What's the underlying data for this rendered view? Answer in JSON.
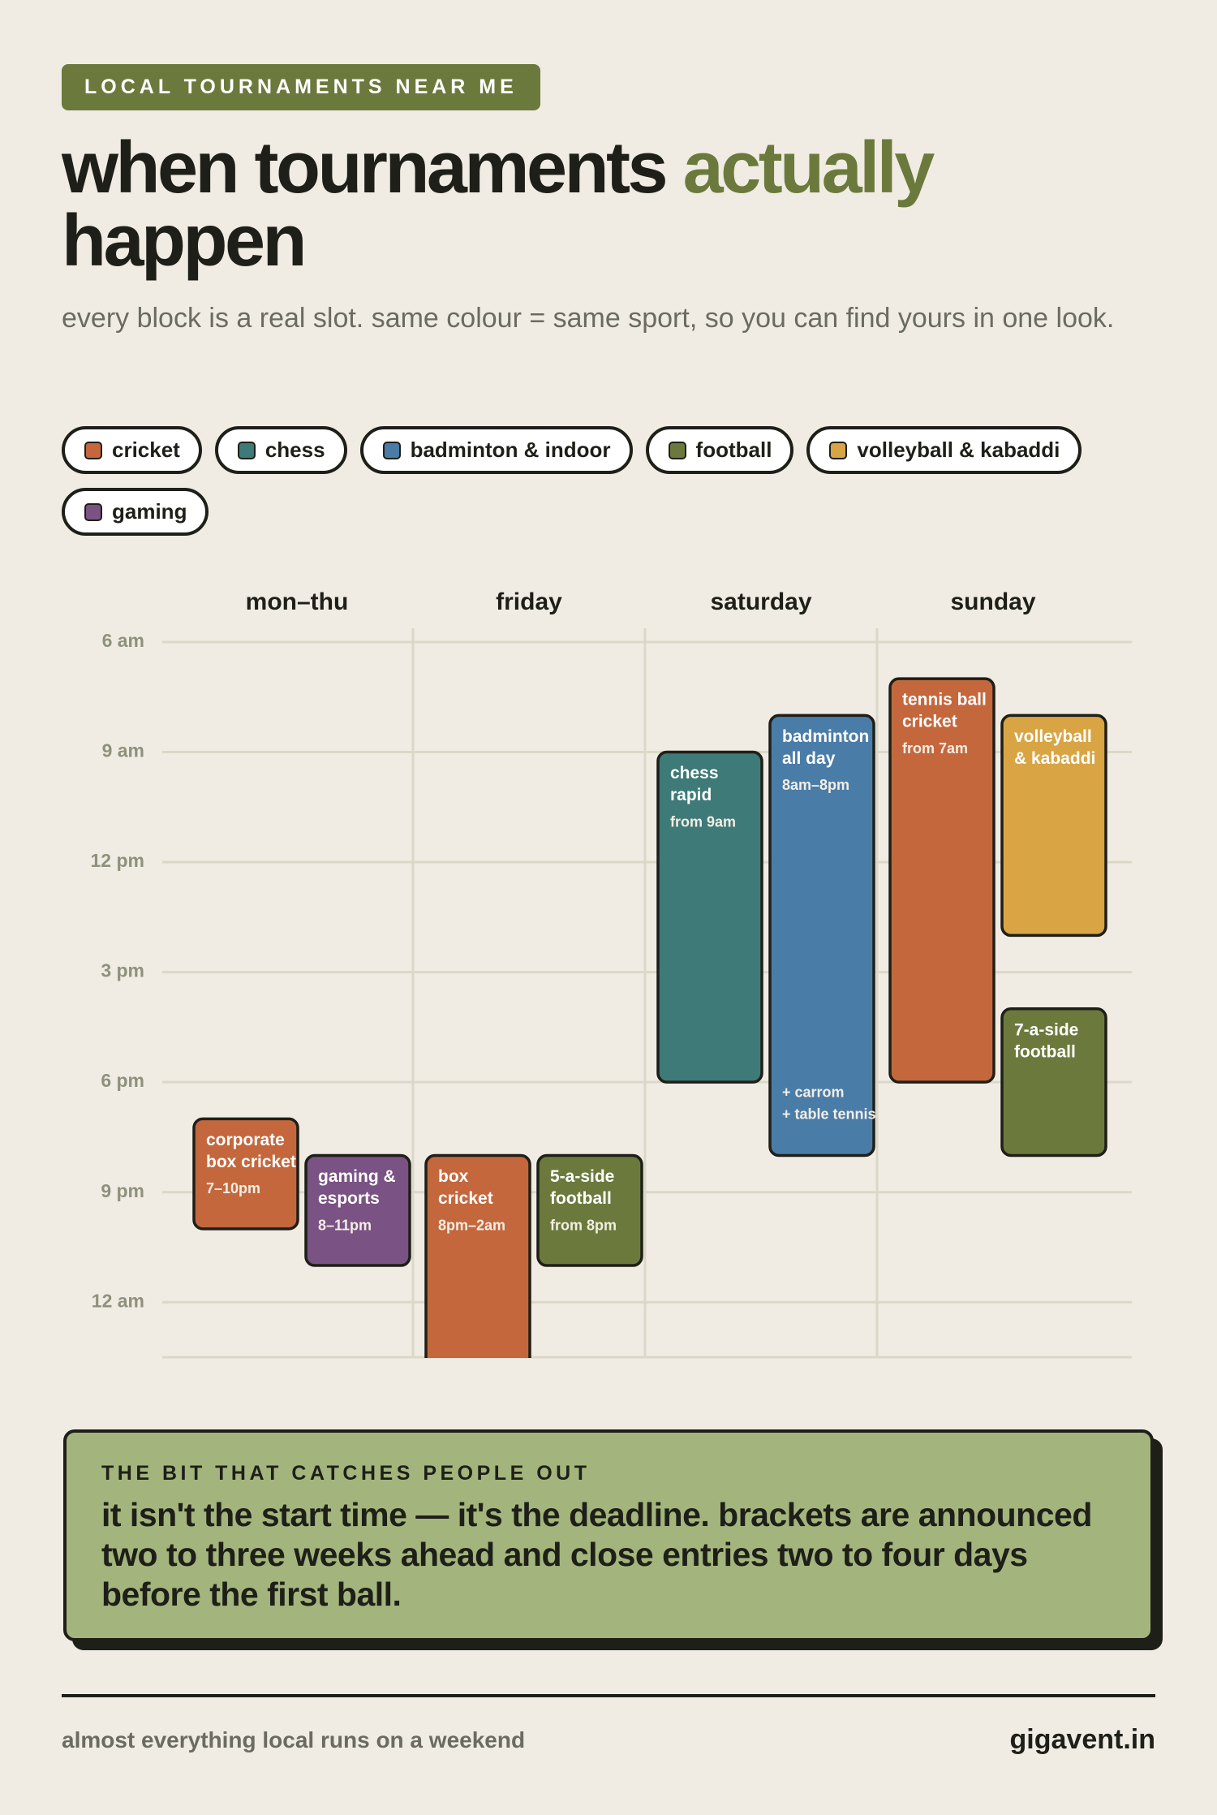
{
  "header": {
    "badge": "LOCAL TOURNAMENTS NEAR ME",
    "title": "when tournaments",
    "title_highlight": "actually",
    "title_end": "happen",
    "subtitle": "every block is a real slot. same colour = same sport, so you can find yours in one look."
  },
  "chart_data": {
    "type": "timeline",
    "legend": [
      {
        "name": "cricket",
        "color": "#c4673d"
      },
      {
        "name": "chess",
        "color": "#3d7a78"
      },
      {
        "name": "badminton & indoor",
        "color": "#4a7ca8"
      },
      {
        "name": "football",
        "color": "#6b7a3c"
      },
      {
        "name": "volleyball & kabaddi",
        "color": "#d9a443"
      },
      {
        "name": "gaming",
        "color": "#7a5283"
      }
    ],
    "categories": [
      "mon–thu",
      "friday",
      "saturday",
      "sunday"
    ],
    "ylim": [
      6,
      25.5
    ],
    "yticks": [
      {
        "value": 6,
        "label": "6 am"
      },
      {
        "value": 9,
        "label": "9 am"
      },
      {
        "value": 12,
        "label": "12 pm"
      },
      {
        "value": 15,
        "label": "3 pm"
      },
      {
        "value": 18,
        "label": "6 pm"
      },
      {
        "value": 21,
        "label": "9 pm"
      },
      {
        "value": 24,
        "label": "12 am"
      }
    ],
    "grid": true,
    "events": [
      {
        "day": 0,
        "sport": 0,
        "lines": [
          "corporate",
          "box cricket"
        ],
        "note": "7–10pm",
        "start": 19,
        "end": 22
      },
      {
        "day": 0,
        "sport": 5,
        "lines": [
          "gaming &",
          "esports"
        ],
        "note": "8–11pm",
        "start": 20,
        "end": 23
      },
      {
        "day": 1,
        "sport": 0,
        "lines": [
          "box",
          "cricket"
        ],
        "note": "8pm–2am",
        "start": 20,
        "end": 26
      },
      {
        "day": 1,
        "sport": 3,
        "lines": [
          "5-a-side",
          "football"
        ],
        "note": "from 8pm",
        "start": 20,
        "end": 23
      },
      {
        "day": 2,
        "sport": 1,
        "lines": [
          "chess",
          "rapid"
        ],
        "note": "from 9am",
        "start": 9,
        "end": 18
      },
      {
        "day": 2,
        "sport": 2,
        "lines": [
          "badminton",
          "all day"
        ],
        "note": "8am–8pm",
        "start": 8,
        "end": 20,
        "extra": [
          "+ carrom",
          "+ table tennis"
        ]
      },
      {
        "day": 3,
        "sport": 0,
        "lines": [
          "tennis ball",
          "cricket"
        ],
        "note": "from 7am",
        "start": 7,
        "end": 18
      },
      {
        "day": 3,
        "sport": 4,
        "lines": [
          "volleyball",
          "& kabaddi"
        ],
        "start": 8,
        "end": 14
      },
      {
        "day": 3,
        "sport": 3,
        "lines": [
          "7-a-side",
          "football"
        ],
        "start": 16,
        "end": 20
      }
    ]
  },
  "callout": {
    "heading": "THE BIT THAT CATCHES PEOPLE OUT",
    "body": "it isn't the start time — it's the deadline. brackets are announced two to three weeks ahead and close entries two to four days before the first ball."
  },
  "footer": {
    "left": "almost everything local runs on a weekend",
    "right": "gigavent.in"
  }
}
